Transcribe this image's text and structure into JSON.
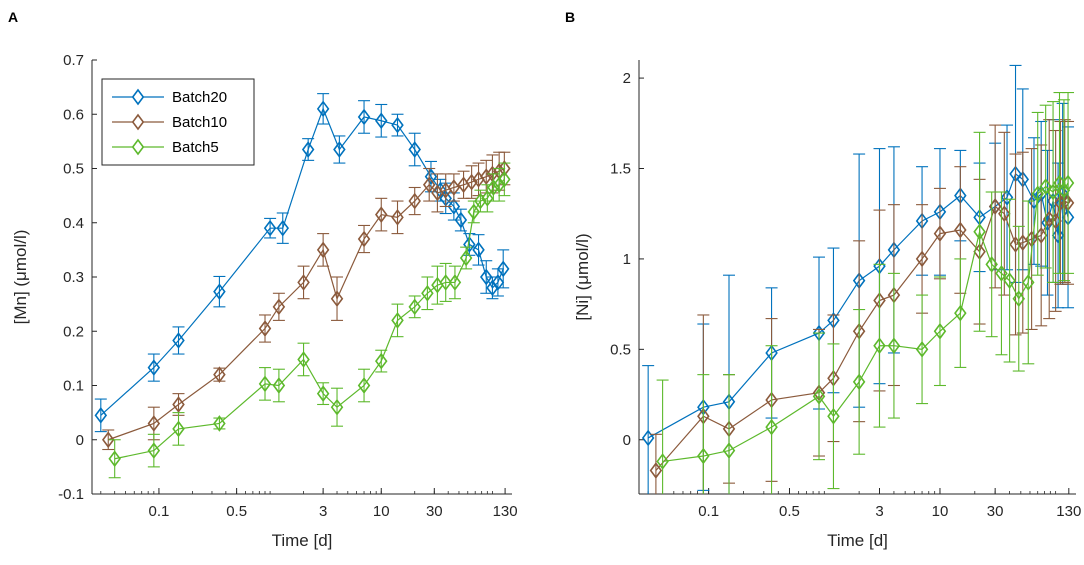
{
  "chart_data": [
    {
      "panel": "A",
      "type": "line",
      "xscale": "log",
      "xlabel": "Time [d]",
      "ylabel": "[Mn] (μmol/l)",
      "xlim": [
        0.025,
        150
      ],
      "ylim": [
        -0.1,
        0.7
      ],
      "xticks": [
        0.1,
        0.5,
        3,
        10,
        30,
        130
      ],
      "xtick_labels": [
        "0.1",
        "0.5",
        "3",
        "10",
        "30",
        "130"
      ],
      "yticks": [
        -0.1,
        0,
        0.1,
        0.2,
        0.3,
        0.4,
        0.5,
        0.6,
        0.7
      ],
      "ytick_labels": [
        "-0.1",
        "0",
        "0.1",
        "0.2",
        "0.3",
        "0.4",
        "0.5",
        "0.6",
        "0.7"
      ],
      "legend": {
        "position": "top-left",
        "entries": [
          "Batch20",
          "Batch10",
          "Batch5"
        ]
      },
      "series": [
        {
          "name": "Batch20",
          "color": "#0072BD",
          "points": [
            [
              0.03,
              0.045,
              0.03
            ],
            [
              0.09,
              0.133,
              0.025
            ],
            [
              0.15,
              0.183,
              0.025
            ],
            [
              0.35,
              0.273,
              0.028
            ],
            [
              1.0,
              0.39,
              0.018
            ],
            [
              1.3,
              0.39,
              0.028
            ],
            [
              2.2,
              0.535,
              0.02
            ],
            [
              3.0,
              0.61,
              0.028
            ],
            [
              4.2,
              0.535,
              0.025
            ],
            [
              7.0,
              0.595,
              0.03
            ],
            [
              10,
              0.588,
              0.03
            ],
            [
              14,
              0.58,
              0.02
            ],
            [
              20,
              0.535,
              0.03
            ],
            [
              28,
              0.485,
              0.028
            ],
            [
              34,
              0.46,
              0.02
            ],
            [
              38,
              0.445,
              0.028
            ],
            [
              45,
              0.43,
              0.025
            ],
            [
              52,
              0.405,
              0.02
            ],
            [
              62,
              0.36,
              0.02
            ],
            [
              75,
              0.35,
              0.028
            ],
            [
              88,
              0.3,
              0.03
            ],
            [
              100,
              0.28,
              0.02
            ],
            [
              112,
              0.29,
              0.025
            ],
            [
              125,
              0.315,
              0.035
            ]
          ]
        },
        {
          "name": "Batch10",
          "color": "#8B5A3C",
          "points": [
            [
              0.035,
              0.0,
              0.018
            ],
            [
              0.09,
              0.03,
              0.03
            ],
            [
              0.15,
              0.065,
              0.02
            ],
            [
              0.35,
              0.12,
              0.012
            ],
            [
              0.9,
              0.205,
              0.025
            ],
            [
              1.2,
              0.245,
              0.025
            ],
            [
              2.0,
              0.29,
              0.03
            ],
            [
              3.0,
              0.35,
              0.03
            ],
            [
              4.0,
              0.26,
              0.04
            ],
            [
              7.0,
              0.37,
              0.025
            ],
            [
              10,
              0.415,
              0.03
            ],
            [
              14,
              0.41,
              0.03
            ],
            [
              20,
              0.44,
              0.025
            ],
            [
              27,
              0.47,
              0.03
            ],
            [
              32,
              0.455,
              0.035
            ],
            [
              38,
              0.46,
              0.03
            ],
            [
              45,
              0.465,
              0.025
            ],
            [
              55,
              0.47,
              0.025
            ],
            [
              65,
              0.475,
              0.03
            ],
            [
              75,
              0.48,
              0.03
            ],
            [
              88,
              0.485,
              0.03
            ],
            [
              100,
              0.49,
              0.035
            ],
            [
              115,
              0.495,
              0.035
            ],
            [
              128,
              0.5,
              0.03
            ]
          ]
        },
        {
          "name": "Batch5",
          "color": "#5DB92C",
          "points": [
            [
              0.04,
              -0.035,
              0.035
            ],
            [
              0.09,
              -0.02,
              0.03
            ],
            [
              0.15,
              0.02,
              0.03
            ],
            [
              0.35,
              0.03,
              0.01
            ],
            [
              0.9,
              0.103,
              0.03
            ],
            [
              1.2,
              0.1,
              0.03
            ],
            [
              2.0,
              0.148,
              0.03
            ],
            [
              3.0,
              0.085,
              0.02
            ],
            [
              4.0,
              0.06,
              0.035
            ],
            [
              7.0,
              0.1,
              0.03
            ],
            [
              10,
              0.145,
              0.02
            ],
            [
              14,
              0.22,
              0.03
            ],
            [
              20,
              0.245,
              0.02
            ],
            [
              26,
              0.27,
              0.03
            ],
            [
              32,
              0.285,
              0.035
            ],
            [
              38,
              0.29,
              0.035
            ],
            [
              46,
              0.29,
              0.03
            ],
            [
              58,
              0.335,
              0.02
            ],
            [
              68,
              0.42,
              0.02
            ],
            [
              78,
              0.44,
              0.02
            ],
            [
              90,
              0.445,
              0.025
            ],
            [
              102,
              0.465,
              0.025
            ],
            [
              115,
              0.47,
              0.03
            ],
            [
              128,
              0.48,
              0.03
            ]
          ]
        }
      ]
    },
    {
      "panel": "B",
      "type": "line",
      "xscale": "log",
      "xlabel": "Time [d]",
      "ylabel": "[Ni] (μmol/l)",
      "xlim": [
        0.025,
        150
      ],
      "ylim": [
        -0.3,
        2.1
      ],
      "xticks": [
        0.1,
        0.5,
        3,
        10,
        30,
        130
      ],
      "xtick_labels": [
        "0.1",
        "0.5",
        "3",
        "10",
        "30",
        "130"
      ],
      "yticks": [
        0,
        0.5,
        1,
        1.5,
        2
      ],
      "ytick_labels": [
        "0",
        "0.5",
        "1",
        "1.5",
        "2"
      ],
      "series": [
        {
          "name": "Batch20",
          "color": "#0072BD",
          "points": [
            [
              0.03,
              0.01,
              0.4
            ],
            [
              0.09,
              0.18,
              0.46
            ],
            [
              0.15,
              0.21,
              0.7
            ],
            [
              0.35,
              0.48,
              0.36
            ],
            [
              0.9,
              0.59,
              0.42
            ],
            [
              1.2,
              0.66,
              0.4
            ],
            [
              2.0,
              0.88,
              0.7
            ],
            [
              3.0,
              0.96,
              0.65
            ],
            [
              4.0,
              1.05,
              0.57
            ],
            [
              7.0,
              1.21,
              0.3
            ],
            [
              10,
              1.26,
              0.35
            ],
            [
              15,
              1.35,
              0.25
            ],
            [
              22,
              1.23,
              0.3
            ],
            [
              30,
              1.29,
              0.35
            ],
            [
              38,
              1.34,
              0.4
            ],
            [
              45,
              1.47,
              0.6
            ],
            [
              52,
              1.44,
              0.5
            ],
            [
              65,
              1.32,
              0.35
            ],
            [
              75,
              1.36,
              0.4
            ],
            [
              85,
              1.2,
              0.4
            ],
            [
              95,
              1.32,
              0.45
            ],
            [
              105,
              1.13,
              0.4
            ],
            [
              115,
              1.36,
              0.5
            ],
            [
              128,
              1.23,
              0.5
            ]
          ]
        },
        {
          "name": "Batch10",
          "color": "#8B5A3C",
          "points": [
            [
              0.035,
              -0.17,
              0.2
            ],
            [
              0.09,
              0.13,
              0.56
            ],
            [
              0.15,
              0.06,
              0.3
            ],
            [
              0.35,
              0.22,
              0.45
            ],
            [
              0.9,
              0.26,
              0.35
            ],
            [
              1.2,
              0.34,
              0.35
            ],
            [
              2.0,
              0.6,
              0.5
            ],
            [
              3.0,
              0.77,
              0.5
            ],
            [
              4.0,
              0.8,
              0.5
            ],
            [
              7.0,
              1.0,
              0.3
            ],
            [
              10,
              1.14,
              0.25
            ],
            [
              15,
              1.16,
              0.35
            ],
            [
              22,
              1.04,
              0.4
            ],
            [
              30,
              1.29,
              0.45
            ],
            [
              36,
              1.25,
              0.45
            ],
            [
              45,
              1.08,
              0.5
            ],
            [
              52,
              1.09,
              0.5
            ],
            [
              62,
              1.11,
              0.5
            ],
            [
              75,
              1.13,
              0.5
            ],
            [
              88,
              1.22,
              0.55
            ],
            [
              100,
              1.21,
              0.5
            ],
            [
              110,
              1.31,
              0.45
            ],
            [
              120,
              1.32,
              0.45
            ],
            [
              128,
              1.31,
              0.45
            ]
          ]
        },
        {
          "name": "Batch5",
          "color": "#5DB92C",
          "points": [
            [
              0.04,
              -0.12,
              0.45
            ],
            [
              0.09,
              -0.09,
              0.45
            ],
            [
              0.15,
              -0.06,
              0.42
            ],
            [
              0.35,
              0.07,
              0.45
            ],
            [
              0.9,
              0.24,
              0.35
            ],
            [
              1.2,
              0.13,
              0.4
            ],
            [
              2.0,
              0.32,
              0.4
            ],
            [
              3.0,
              0.52,
              0.45
            ],
            [
              4.0,
              0.52,
              0.4
            ],
            [
              7.0,
              0.5,
              0.3
            ],
            [
              10,
              0.6,
              0.3
            ],
            [
              15,
              0.7,
              0.3
            ],
            [
              22,
              1.15,
              0.55
            ],
            [
              28,
              0.97,
              0.4
            ],
            [
              34,
              0.92,
              0.45
            ],
            [
              40,
              0.88,
              0.45
            ],
            [
              48,
              0.78,
              0.4
            ],
            [
              58,
              0.87,
              0.45
            ],
            [
              70,
              1.36,
              0.45
            ],
            [
              82,
              1.4,
              0.45
            ],
            [
              95,
              1.37,
              0.5
            ],
            [
              108,
              1.42,
              0.5
            ],
            [
              118,
              1.38,
              0.5
            ],
            [
              128,
              1.42,
              0.5
            ]
          ]
        }
      ]
    }
  ]
}
